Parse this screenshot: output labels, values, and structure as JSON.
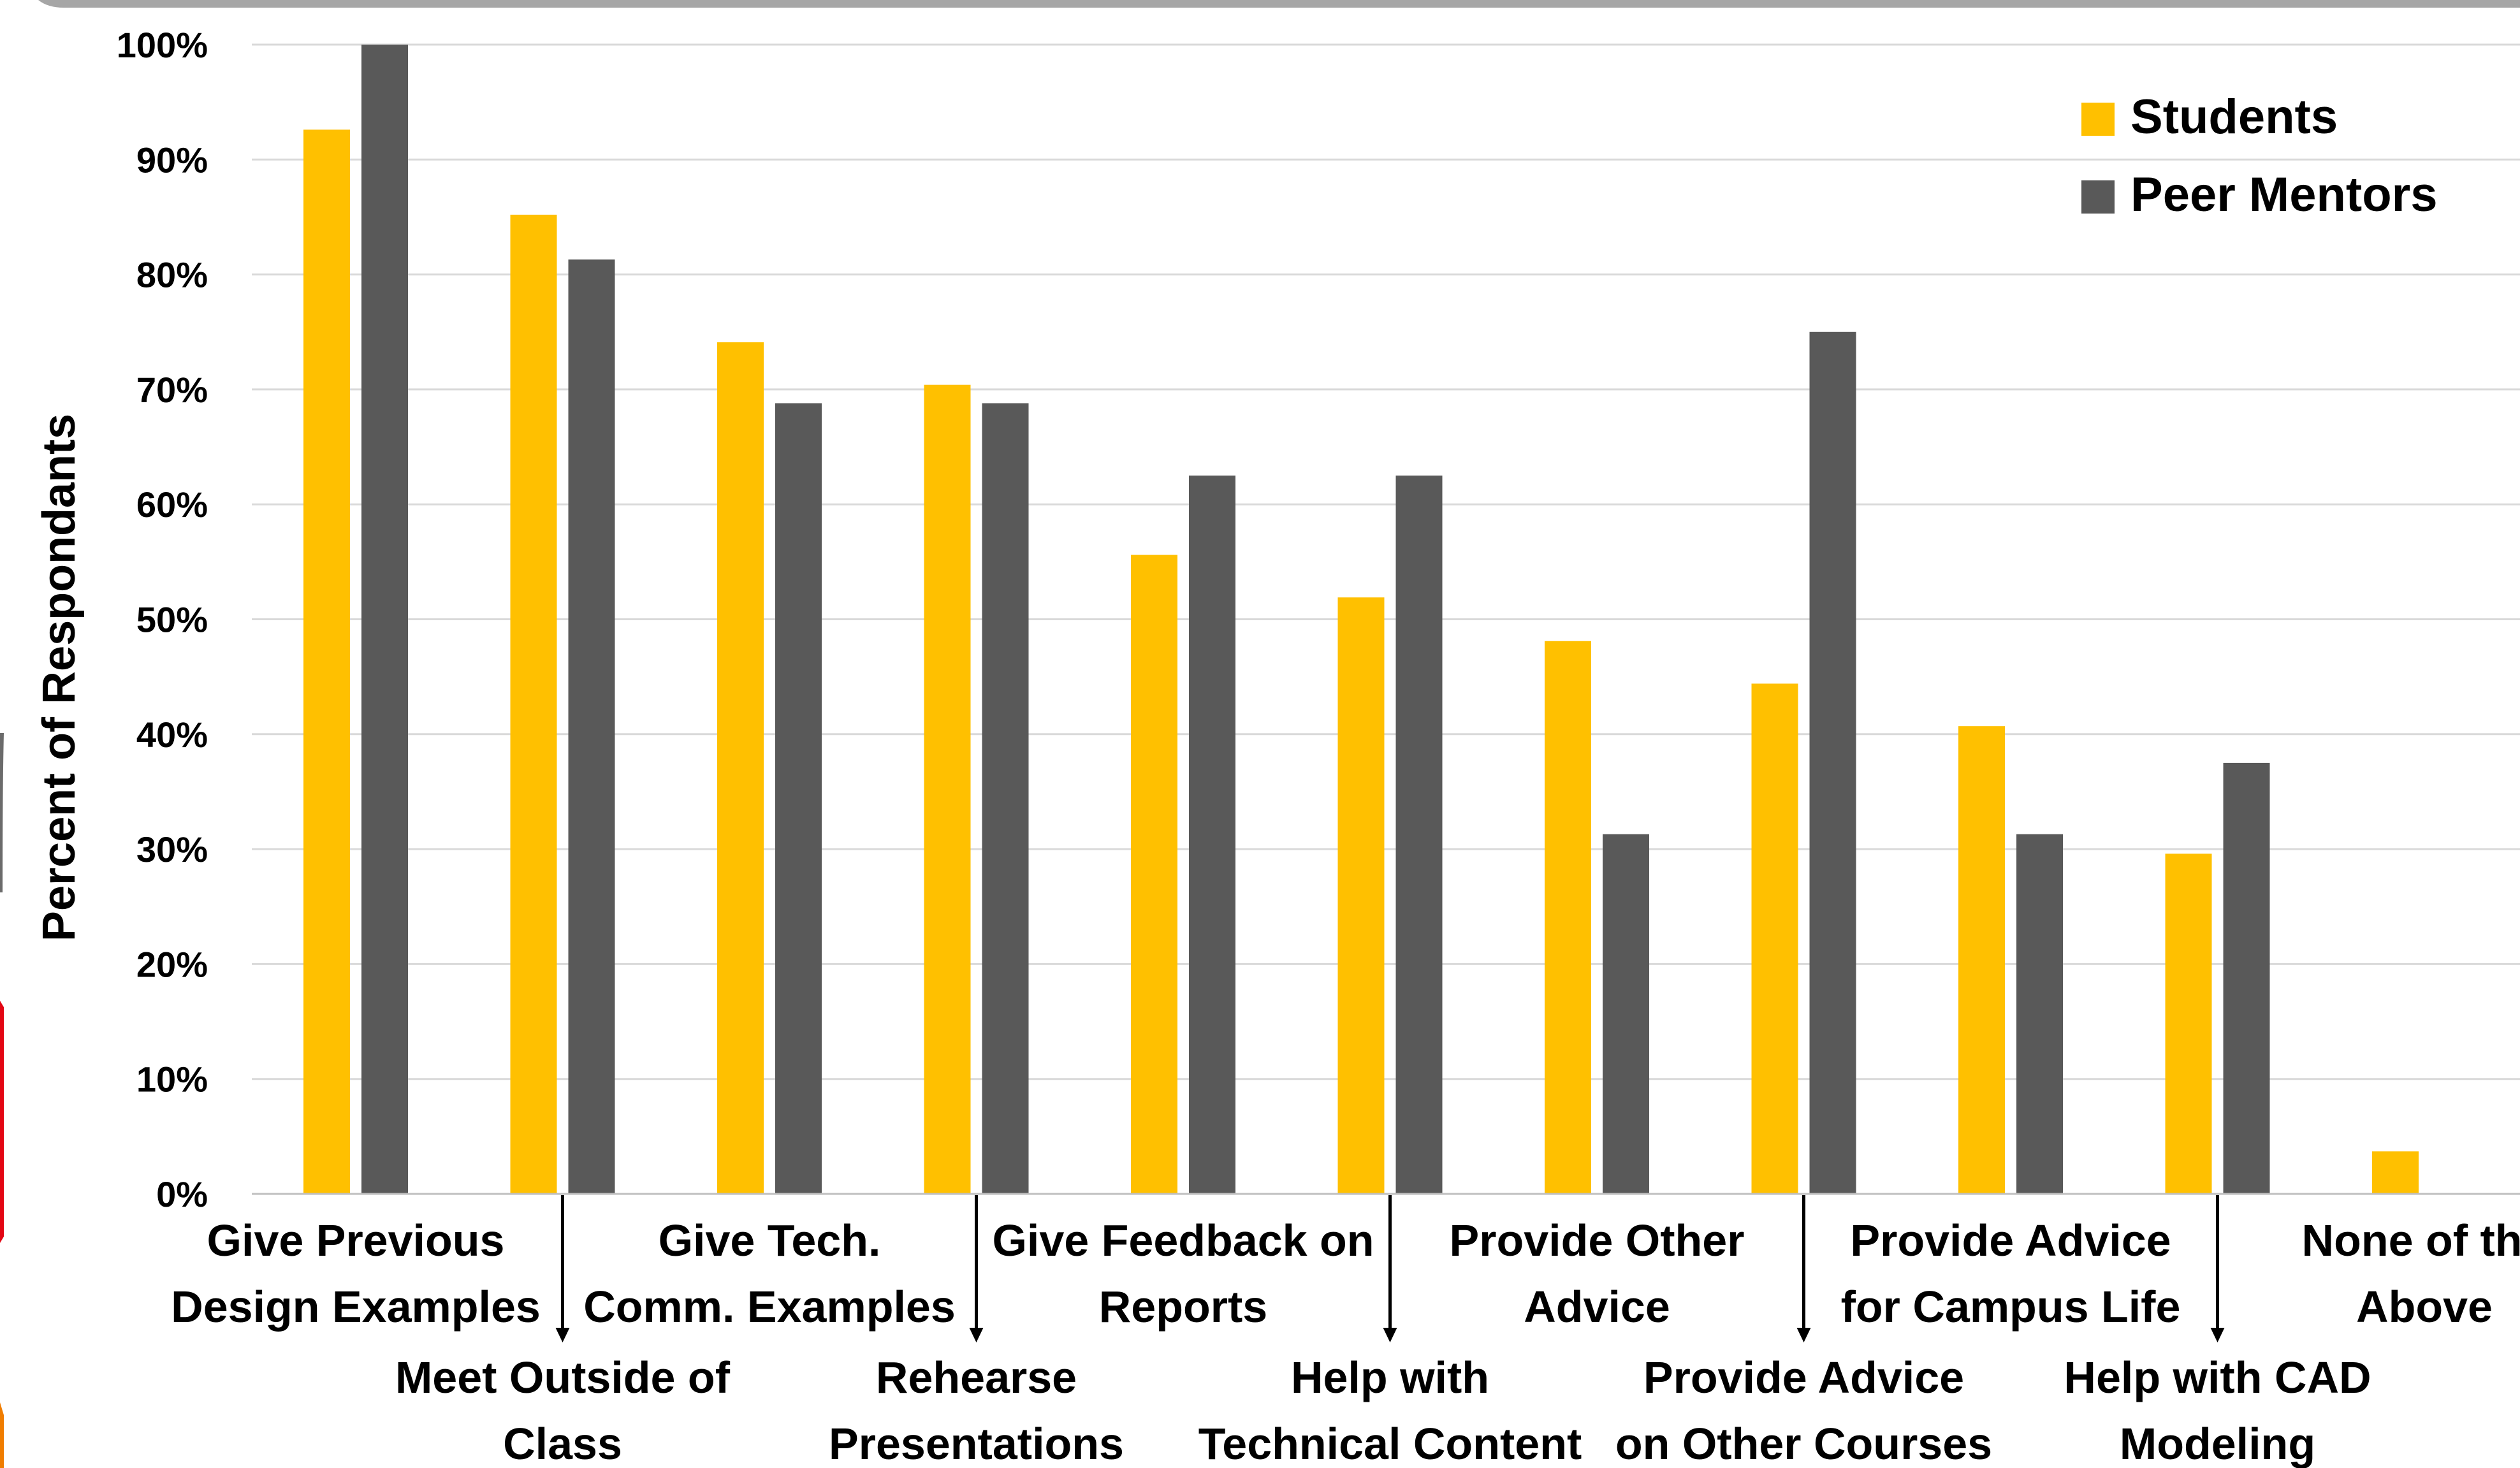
{
  "chart_data": {
    "type": "bar",
    "ylabel": "Percent of Respondants",
    "xlabel": "",
    "ylim": [
      0,
      100
    ],
    "yticks": [
      "0%",
      "10%",
      "20%",
      "30%",
      "40%",
      "50%",
      "60%",
      "70%",
      "80%",
      "90%",
      "100%"
    ],
    "grid": true,
    "legend_position": "top-right",
    "categories": [
      [
        "Give Previous",
        "Design Examples"
      ],
      [
        "Meet Outside of",
        "Class"
      ],
      [
        "Give Tech.",
        "Comm. Examples"
      ],
      [
        "Rehearse",
        "Presentations"
      ],
      [
        "Give Feedback on",
        "Reports"
      ],
      [
        "Help with",
        "Technical Content"
      ],
      [
        "Provide Other",
        "Advice"
      ],
      [
        "Provide Advice",
        "on Other Courses"
      ],
      [
        "Provide Advice",
        "for Campus Life"
      ],
      [
        "Help with CAD",
        "Modeling"
      ],
      [
        "None of the",
        "Above"
      ]
    ],
    "label_rows": [
      "upper",
      "lower",
      "upper",
      "lower",
      "upper",
      "lower",
      "upper",
      "lower",
      "upper",
      "lower",
      "upper"
    ],
    "series": [
      {
        "name": "Students",
        "color": "#ffc000",
        "values": [
          92.6,
          85.2,
          74.1,
          70.4,
          55.6,
          51.9,
          48.1,
          44.4,
          40.7,
          29.6,
          3.7
        ]
      },
      {
        "name": "Peer Mentors",
        "color": "#595959",
        "values": [
          100,
          81.3,
          68.8,
          68.8,
          62.5,
          62.5,
          31.3,
          75.0,
          31.3,
          37.5,
          0
        ]
      }
    ]
  }
}
